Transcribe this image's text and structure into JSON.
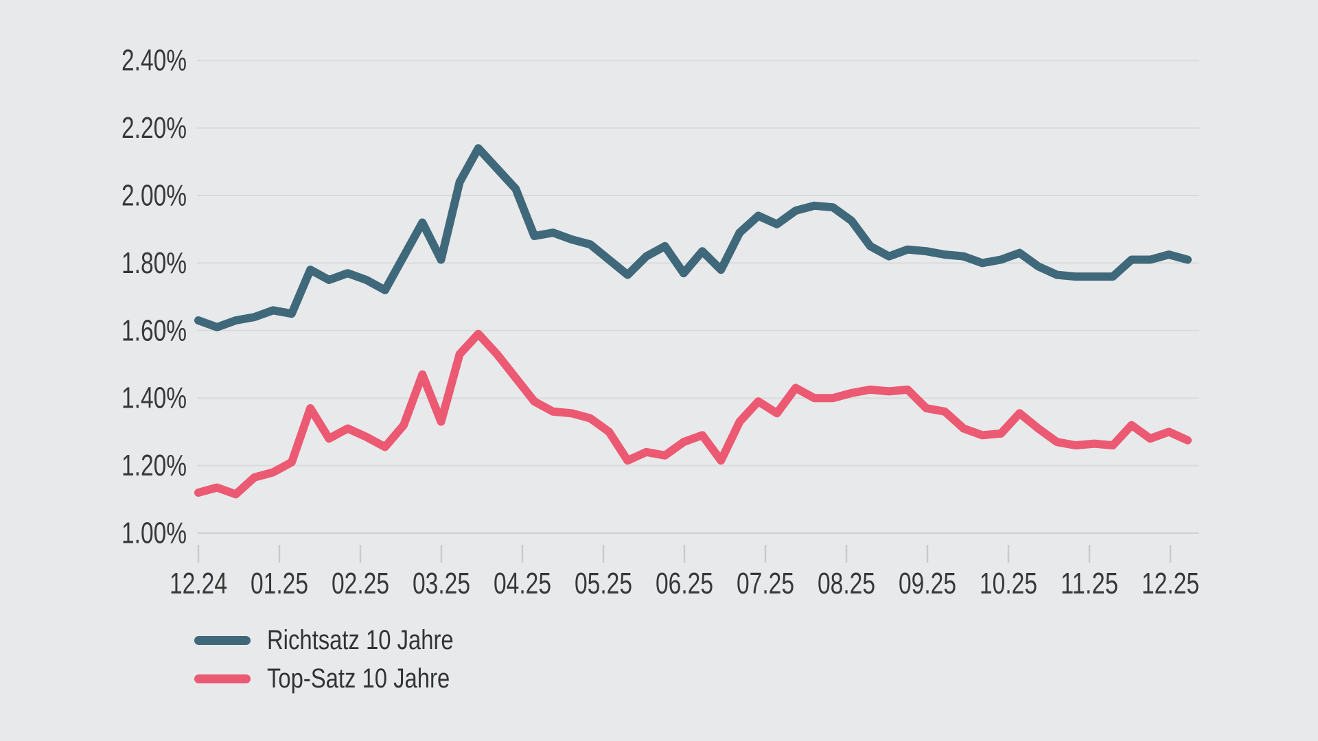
{
  "colors": {
    "background": "#e8e9eb",
    "gridline": "#d9dadc",
    "axis_line": "#cfd0d2",
    "tick_mark": "#c8cacc",
    "label_text": "#383838",
    "richtsatz_teal": "#3f697a",
    "topsatz_pink": "#eb5a72"
  },
  "chart_data": {
    "type": "line",
    "title": "",
    "xlabel": "",
    "ylabel": "",
    "grid": "horizontal-only",
    "legend_position": "bottom-left",
    "x_tick_labels": [
      "12.24",
      "01.25",
      "02.25",
      "03.25",
      "04.25",
      "05.25",
      "06.25",
      "07.25",
      "08.25",
      "09.25",
      "10.25",
      "11.25",
      "12.25"
    ],
    "y_ticks": [
      {
        "value": 2.4,
        "label": "2.40%"
      },
      {
        "value": 2.2,
        "label": "2.20%"
      },
      {
        "value": 2.0,
        "label": "2.00%"
      },
      {
        "value": 1.8,
        "label": "1.80%"
      },
      {
        "value": 1.6,
        "label": "1.60%"
      },
      {
        "value": 1.4,
        "label": "1.40%"
      },
      {
        "value": 1.2,
        "label": "1.20%"
      },
      {
        "value": 1.0,
        "label": "1.00%"
      }
    ],
    "ylim": [
      1.0,
      2.4
    ],
    "x_unit": "weekly points from 12.24 to 12.25",
    "series": [
      {
        "name": "Richtsatz 10 Jahre",
        "color": "#3f697a",
        "values": [
          1.63,
          1.61,
          1.63,
          1.64,
          1.66,
          1.65,
          1.78,
          1.75,
          1.77,
          1.75,
          1.72,
          1.82,
          1.92,
          1.81,
          2.04,
          2.14,
          2.08,
          2.02,
          1.88,
          1.89,
          1.87,
          1.855,
          1.81,
          1.765,
          1.82,
          1.85,
          1.77,
          1.835,
          1.78,
          1.89,
          1.94,
          1.915,
          1.955,
          1.97,
          1.965,
          1.925,
          1.85,
          1.82,
          1.84,
          1.835,
          1.825,
          1.82,
          1.8,
          1.81,
          1.83,
          1.79,
          1.765,
          1.76,
          1.76,
          1.76,
          1.81,
          1.81,
          1.825,
          1.81
        ]
      },
      {
        "name": "Top-Satz 10 Jahre",
        "color": "#eb5a72",
        "values": [
          1.12,
          1.135,
          1.115,
          1.165,
          1.18,
          1.21,
          1.37,
          1.28,
          1.31,
          1.285,
          1.255,
          1.32,
          1.47,
          1.33,
          1.53,
          1.59,
          1.53,
          1.46,
          1.39,
          1.36,
          1.355,
          1.34,
          1.3,
          1.215,
          1.24,
          1.23,
          1.27,
          1.29,
          1.215,
          1.33,
          1.39,
          1.355,
          1.43,
          1.4,
          1.4,
          1.415,
          1.425,
          1.42,
          1.425,
          1.37,
          1.36,
          1.31,
          1.29,
          1.295,
          1.355,
          1.31,
          1.27,
          1.26,
          1.265,
          1.26,
          1.32,
          1.28,
          1.3,
          1.275
        ]
      }
    ]
  }
}
